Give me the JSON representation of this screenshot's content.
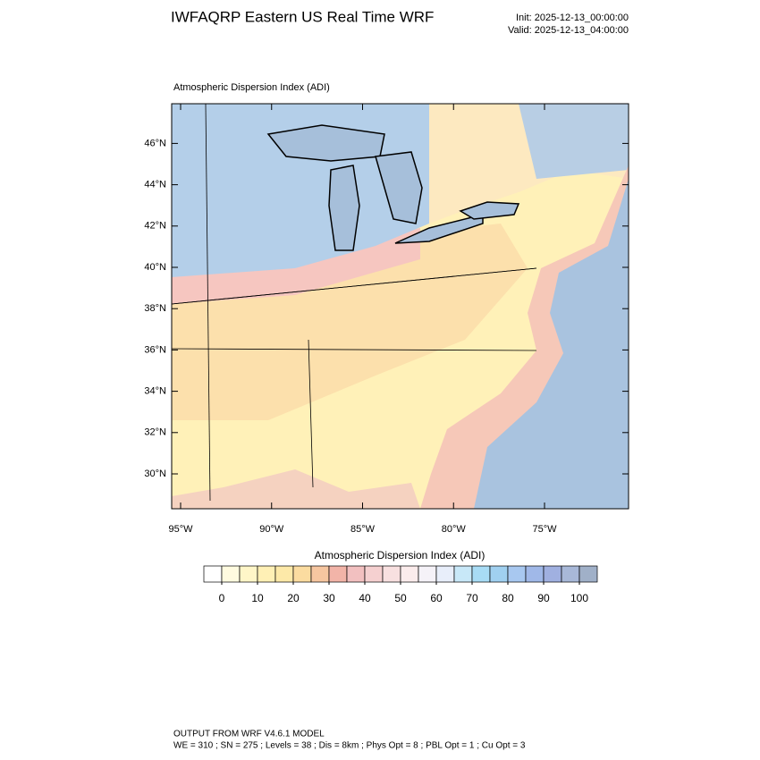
{
  "header": {
    "title": "IWFAQRP Eastern US Real Time WRF",
    "init": "Init: 2025-12-13_00:00:00",
    "valid": "Valid: 2025-12-13_04:00:00"
  },
  "map": {
    "subtitle": "Atmospheric Dispersion Index   (ADI)",
    "lat_ticks": [
      {
        "value": 46,
        "label": "46°N"
      },
      {
        "value": 44,
        "label": "44°N"
      },
      {
        "value": 42,
        "label": "42°N"
      },
      {
        "value": 40,
        "label": "40°N"
      },
      {
        "value": 38,
        "label": "38°N"
      },
      {
        "value": 36,
        "label": "36°N"
      },
      {
        "value": 34,
        "label": "34°N"
      },
      {
        "value": 32,
        "label": "32°N"
      },
      {
        "value": 30,
        "label": "30°N"
      }
    ],
    "lon_ticks": [
      {
        "value": -95,
        "label": "95°W"
      },
      {
        "value": -90,
        "label": "90°W"
      },
      {
        "value": -85,
        "label": "85°W"
      },
      {
        "value": -80,
        "label": "80°W"
      },
      {
        "value": -75,
        "label": "75°W"
      }
    ]
  },
  "colorbar": {
    "title": "Atmospheric Dispersion Index  (ADI)",
    "colors": [
      "#ffffff",
      "#fffbe0",
      "#fff6c8",
      "#fff0b5",
      "#fde9a8",
      "#fbdca0",
      "#f6c6a0",
      "#f2b4a8",
      "#f2c0c0",
      "#f5d0d0",
      "#f8e0e0",
      "#fbecec",
      "#f5f2f8",
      "#e8eefa",
      "#c8e8f8",
      "#a8dcf5",
      "#a0d0f0",
      "#a8c8f0",
      "#a0b8e8",
      "#a0b0e0",
      "#a8b8d8",
      "#a0b0c8"
    ],
    "ticks": [
      0,
      10,
      20,
      30,
      40,
      50,
      60,
      70,
      80,
      90,
      100
    ]
  },
  "footer": {
    "line1": "OUTPUT FROM WRF V4.6.1 MODEL",
    "line2": "WE = 310 ; SN = 275 ; Levels = 38 ; Dis = 8km ; Phys Opt = 8 ; PBL Opt = 1 ; Cu Opt = 3"
  }
}
